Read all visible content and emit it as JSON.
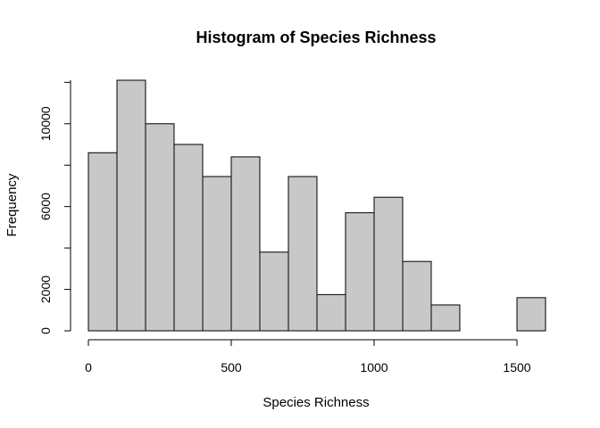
{
  "chart_data": {
    "type": "bar",
    "title": "Histogram of Species Richness",
    "xlabel": "Species Richness",
    "ylabel": "Frequency",
    "bin_edges": [
      0,
      100,
      200,
      300,
      400,
      500,
      600,
      700,
      800,
      900,
      1000,
      1100,
      1200,
      1300,
      1400,
      1500,
      1600
    ],
    "values": [
      8600,
      12100,
      10000,
      9000,
      7450,
      8400,
      3800,
      7450,
      1750,
      5700,
      6450,
      3350,
      1250,
      0,
      0,
      1600
    ],
    "xlim": [
      0,
      1600
    ],
    "ylim": [
      0,
      12100
    ],
    "x_ticks": [
      0,
      500,
      1000,
      1500
    ],
    "y_ticks": [
      0,
      2000,
      6000,
      10000
    ],
    "bar_color": "#c8c8c8",
    "grid": false,
    "legend": "none"
  }
}
